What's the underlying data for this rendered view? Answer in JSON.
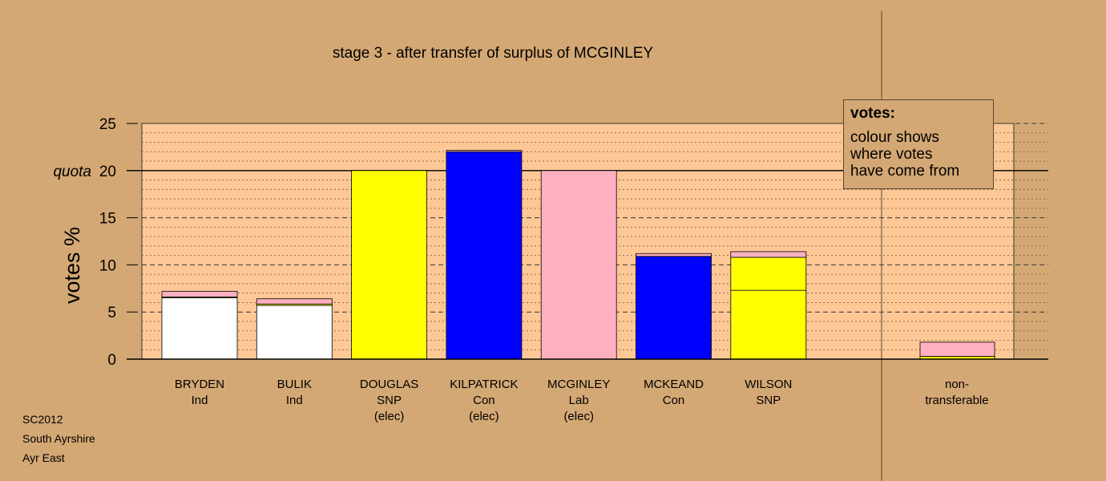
{
  "chart_data": {
    "type": "bar",
    "stacked": true,
    "title": "stage 3 - after transfer of surplus of MCGINLEY",
    "ylabel": "votes %",
    "quota_label": "quota",
    "quota": 20,
    "ylim": [
      0,
      25
    ],
    "yticks": [
      0,
      5,
      10,
      15,
      20,
      25
    ],
    "grid": true,
    "candidates": [
      {
        "name": "BRYDEN",
        "party": "Ind",
        "status": "",
        "segments": [
          {
            "color": "#ffffff",
            "value": 6.5
          },
          {
            "color": "#ffff00",
            "value": 0.1
          },
          {
            "color": "#ffb0c0",
            "value": 0.6
          }
        ]
      },
      {
        "name": "BULIK",
        "party": "Ind",
        "status": "",
        "segments": [
          {
            "color": "#ffffff",
            "value": 5.7
          },
          {
            "color": "#ffff00",
            "value": 0.15
          },
          {
            "color": "#ffb0c0",
            "value": 0.55
          }
        ]
      },
      {
        "name": "DOUGLAS",
        "party": "SNP",
        "status": "(elec)",
        "segments": [
          {
            "color": "#ffff00",
            "value": 20.0
          }
        ]
      },
      {
        "name": "KILPATRICK",
        "party": "Con",
        "status": "(elec)",
        "segments": [
          {
            "color": "#0000ff",
            "value": 22.0
          },
          {
            "color": "#ffb0c0",
            "value": 0.15
          }
        ]
      },
      {
        "name": "MCGINLEY",
        "party": "Lab",
        "status": "(elec)",
        "segments": [
          {
            "color": "#ffb0c0",
            "value": 20.0
          }
        ]
      },
      {
        "name": "MCKEAND",
        "party": "Con",
        "status": "",
        "segments": [
          {
            "color": "#0000ff",
            "value": 10.9
          },
          {
            "color": "#ffb0c0",
            "value": 0.3
          }
        ]
      },
      {
        "name": "WILSON",
        "party": "SNP",
        "status": "",
        "segments": [
          {
            "color": "#ffff00",
            "value": 7.3
          },
          {
            "color": "#ffff00",
            "value": 3.5
          },
          {
            "color": "#ffb0c0",
            "value": 0.6
          }
        ]
      }
    ],
    "nontransferable": {
      "label_line1": "non-",
      "label_line2": "transferable",
      "segments": [
        {
          "color": "#ffff00",
          "value": 0.3
        },
        {
          "color": "#ffb0c0",
          "value": 1.5
        }
      ]
    }
  },
  "legend": {
    "title": "votes:",
    "line1": "colour shows",
    "line2": "where votes",
    "line3": "have come from"
  },
  "footer": {
    "line1": "SC2012",
    "line2": "South Ayrshire",
    "line3": "Ayr East"
  }
}
